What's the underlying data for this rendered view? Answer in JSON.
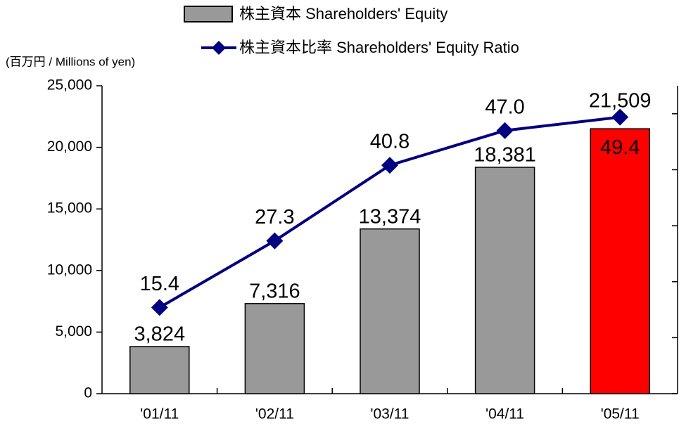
{
  "chart_data": {
    "type": "bar_line",
    "y_axis_label": "(百万円 / Millions of yen)",
    "categories": [
      "'01/11",
      "'02/11",
      "'03/11",
      "'04/11",
      "'05/11"
    ],
    "series": [
      {
        "name": "株主資本 Shareholders' Equity",
        "type": "bar",
        "color": "#999999",
        "bar_colors": [
          "#999999",
          "#999999",
          "#999999",
          "#999999",
          "#ff0000"
        ],
        "values": [
          3824,
          7316,
          13374,
          18381,
          21509
        ],
        "value_labels": [
          "3,824",
          "7,316",
          "13,374",
          "18,381",
          "21,509"
        ]
      },
      {
        "name": "株主資本比率 Shareholders' Equity Ratio",
        "type": "line",
        "axis": "y2",
        "color": "#000080",
        "values": [
          15.4,
          27.3,
          40.8,
          47.0,
          49.4
        ],
        "value_labels": [
          "15.4",
          "27.3",
          "40.8",
          "47.0",
          "49.4"
        ]
      }
    ],
    "ylim": [
      0,
      25000
    ],
    "yticks": [
      0,
      {
        "value": 5000,
        "label": "5,000"
      },
      {
        "value": 10000,
        "label": "10,000"
      },
      {
        "value": 15000,
        "label": "15,000"
      },
      {
        "value": 20000,
        "label": "20,000"
      },
      {
        "value": 25000,
        "label": "25,000"
      }
    ],
    "y2lim": [
      0,
      55
    ],
    "y2ticks": [
      0,
      10,
      20,
      30,
      40,
      50
    ]
  }
}
